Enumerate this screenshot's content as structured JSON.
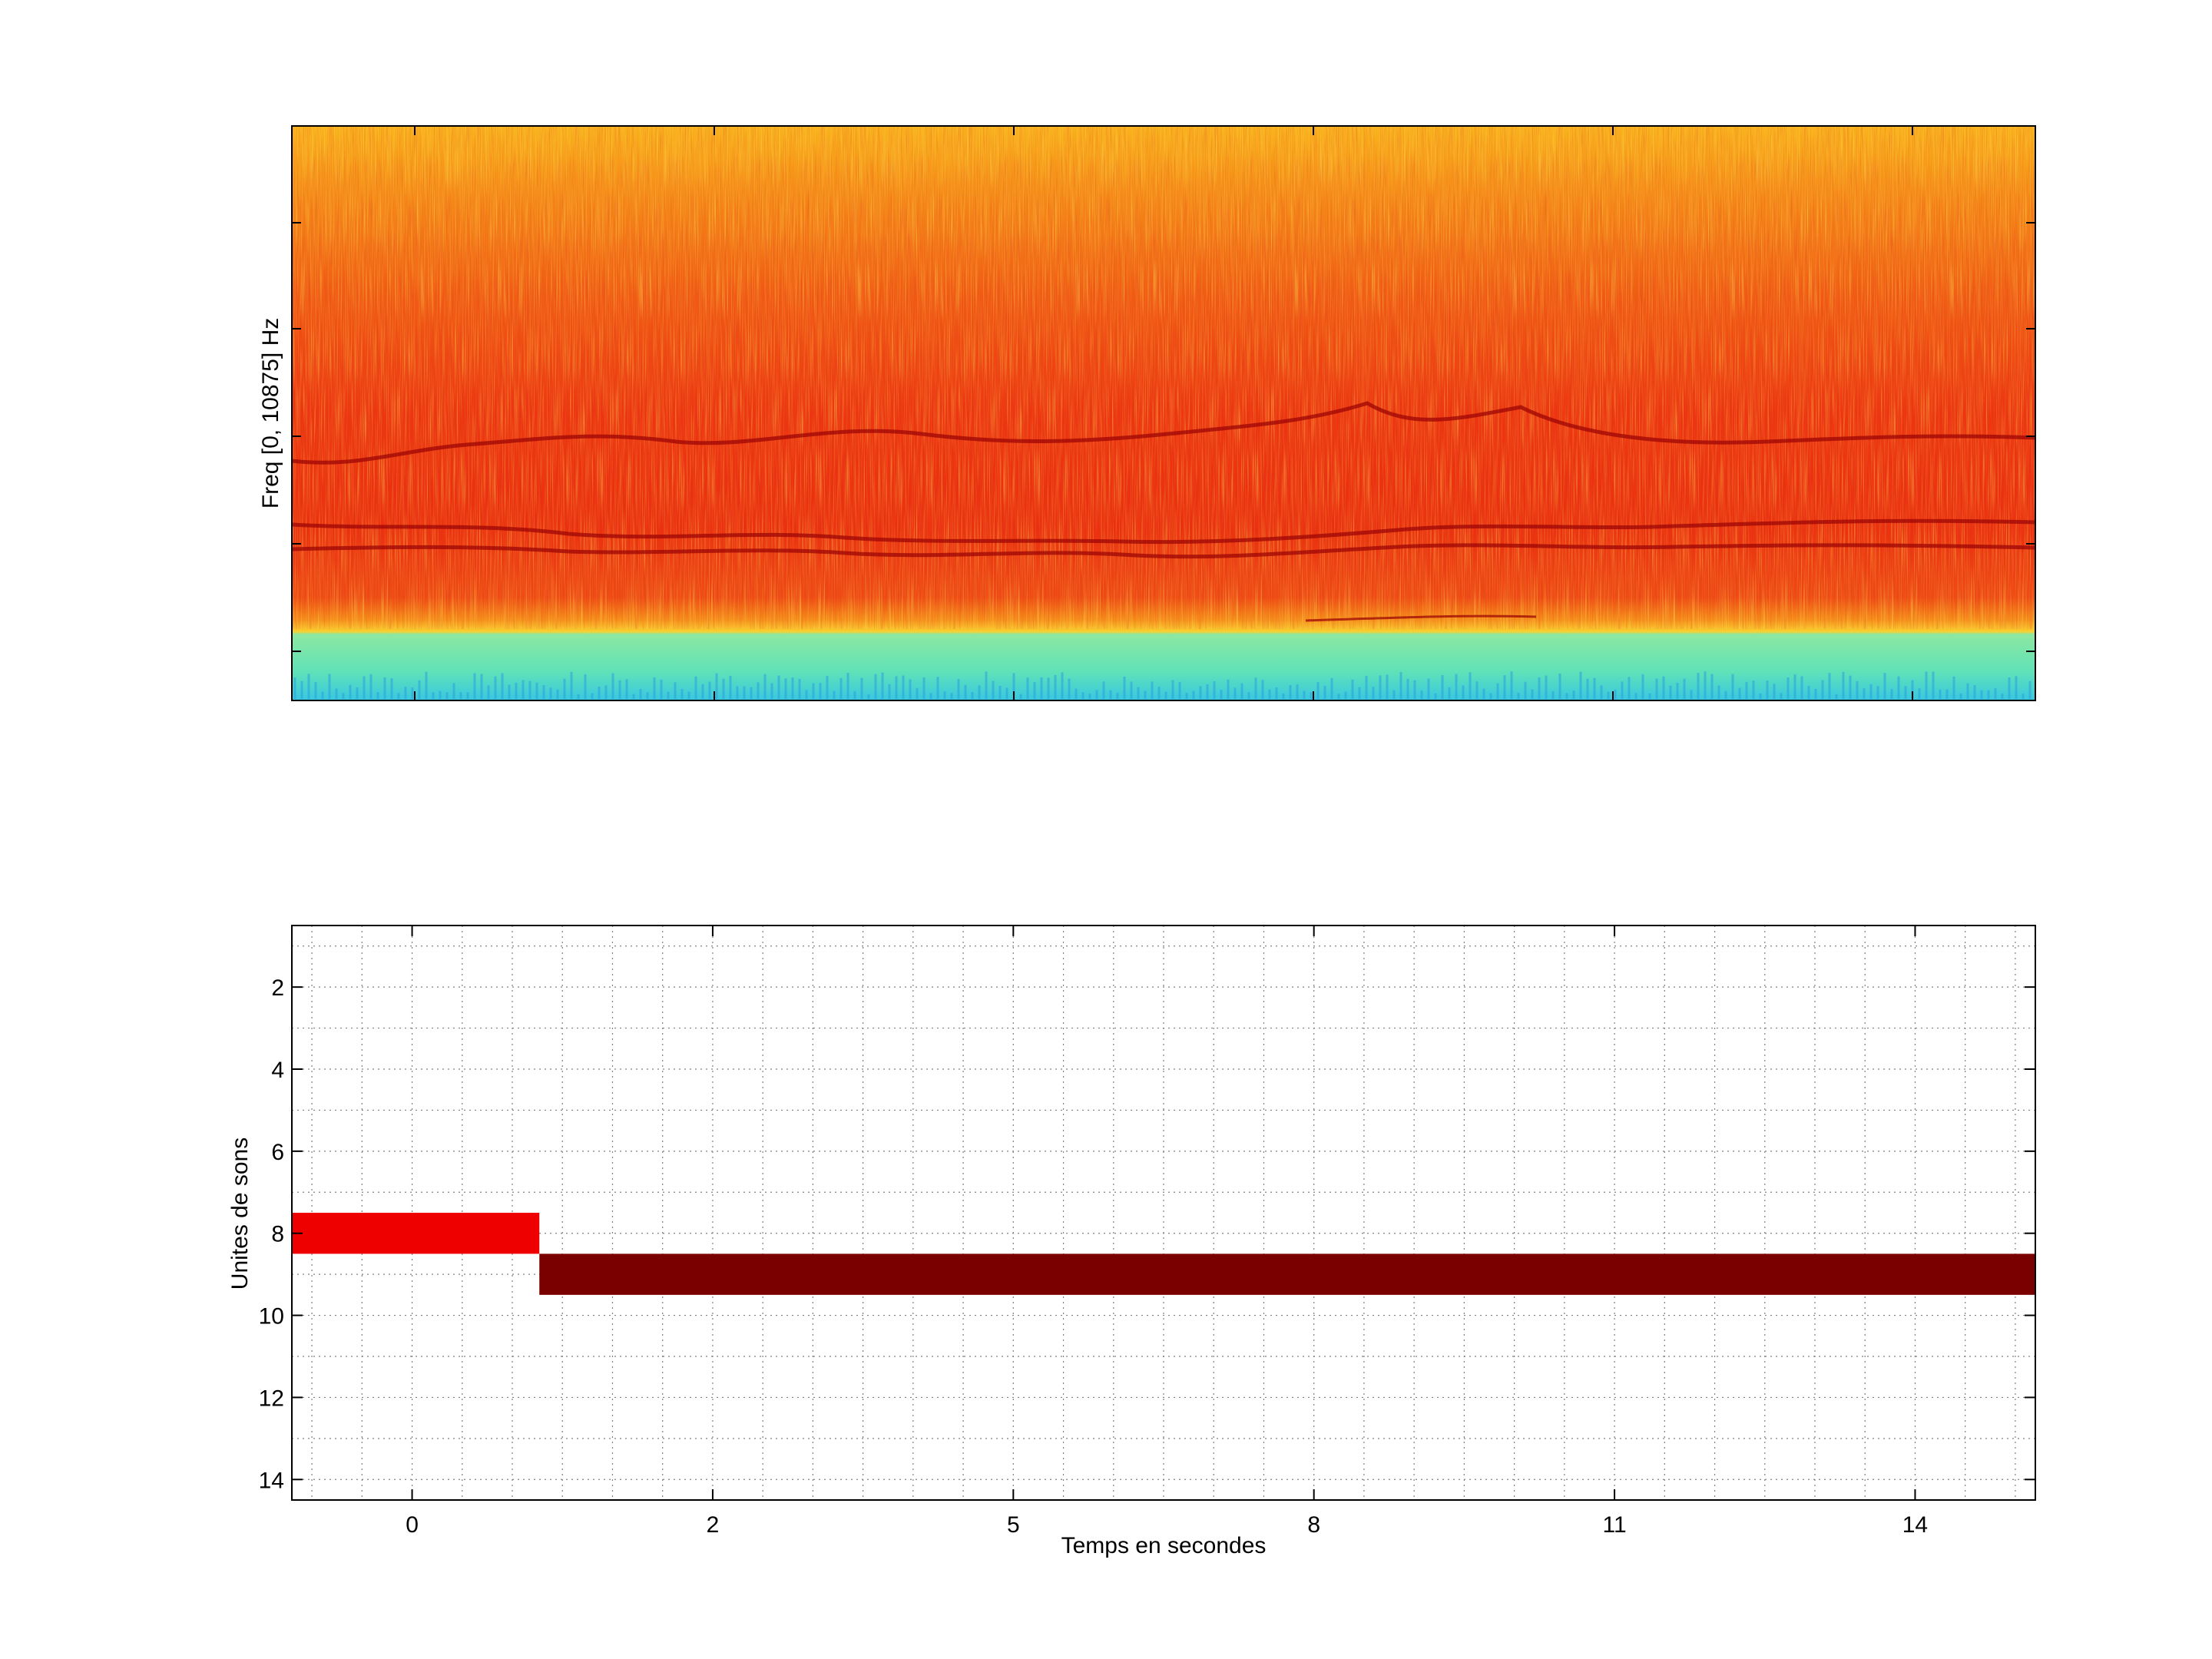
{
  "chart_data": [
    {
      "type": "heatmap",
      "title": "",
      "xlabel": "",
      "ylabel": "Freq [0, 10875] Hz",
      "xtick_labels": [],
      "ytick_labels": [],
      "colormap": "jet",
      "colors": {
        "background_dominant": "#ee3311",
        "high_band": "#f7a21a",
        "harmonic_traces": "#a80808",
        "low_band": "#5fe7b0"
      },
      "axes_visible": true,
      "grid": false
    },
    {
      "type": "bar",
      "title": "",
      "xlabel": "Temps en secondes",
      "ylabel": "Unites de sons",
      "xlim": [
        -1.2,
        16.2
      ],
      "ylim": [
        14.5,
        0.5
      ],
      "x_ticks": [
        0,
        3,
        6,
        9,
        12,
        15
      ],
      "x_tick_labels": [
        "0",
        "2",
        "5",
        "8",
        "11",
        "14"
      ],
      "y_ticks": [
        2,
        4,
        6,
        8,
        10,
        12,
        14
      ],
      "y_tick_labels": [
        "2",
        "4",
        "6",
        "8",
        "10",
        "12",
        "14"
      ],
      "y_direction": "reversed",
      "grid": true,
      "segments": [
        {
          "unit": 8,
          "x_start": -1.2,
          "x_end": 1.27,
          "color": "#ee0000"
        },
        {
          "unit": 9,
          "x_start": 1.27,
          "x_end": 16.2,
          "color": "#7a0000"
        }
      ]
    }
  ]
}
